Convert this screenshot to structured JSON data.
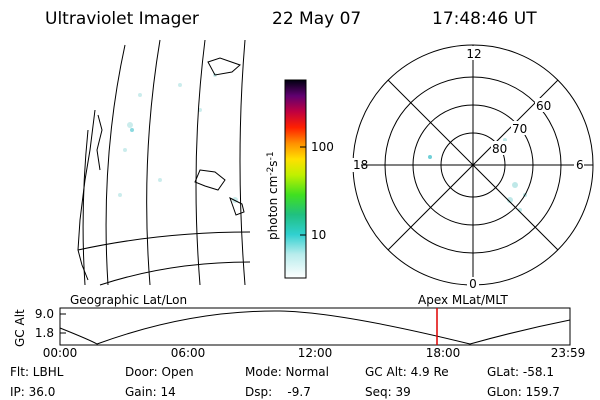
{
  "header": {
    "title": "Ultraviolet Imager",
    "date": "22 May 07",
    "time": "17:48:46 UT"
  },
  "colorbar": {
    "label_parts": [
      "photon cm",
      "-2",
      "s",
      "-1"
    ],
    "ticks": [
      "100",
      "10"
    ]
  },
  "polar": {
    "hour_labels": [
      "12",
      "18",
      "6",
      "0"
    ],
    "lat_labels": [
      "60",
      "70",
      "80"
    ]
  },
  "map_label": "Geographic Lat/Lon",
  "apex_label": "Apex MLat/MLT",
  "altitude": {
    "axis_label": "GC Alt",
    "ticks": [
      "9.0",
      "1.8"
    ],
    "times": [
      "00:00",
      "06:00",
      "12:00",
      "18:00",
      "23:59"
    ]
  },
  "status": {
    "rows": [
      [
        "Flt: LBHL",
        "Door: Open",
        "Mode: Normal",
        "GC Alt: 4.9 Re",
        "GLat: -58.1"
      ],
      [
        "IP: 36.0",
        "Gain: 14",
        "Dsp:    -9.7",
        "Seq: 39",
        "GLon: 159.7"
      ]
    ]
  }
}
